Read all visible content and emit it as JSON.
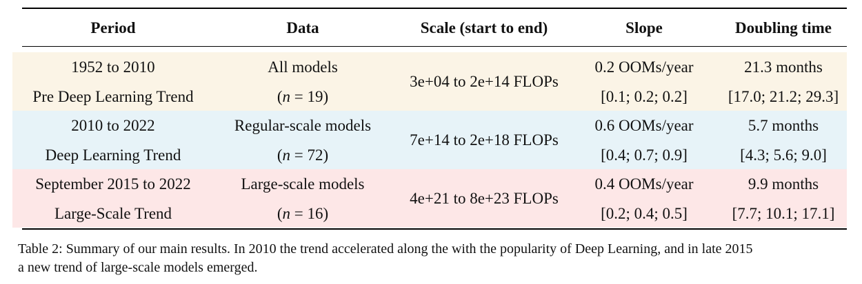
{
  "header": {
    "period": "Period",
    "data": "Data",
    "scale": "Scale (start to end)",
    "slope": "Slope",
    "doubling": "Doubling time"
  },
  "colors": {
    "row1": "#fbf4e6",
    "row2": "#e7f3f8",
    "row3": "#fde7e7"
  },
  "rows": [
    {
      "period_line1": "1952 to 2010",
      "period_line2": "Pre Deep Learning Trend",
      "data_line1": "All models",
      "n_value": "19",
      "scale": "3e+04 to 2e+14 FLOPs",
      "slope_line1": "0.2 OOMs/year",
      "slope_line2": "[0.1; 0.2; 0.2]",
      "doubling_line1": "21.3 months",
      "doubling_line2": "[17.0; 21.2; 29.3]"
    },
    {
      "period_line1": "2010 to 2022",
      "period_line2": "Deep Learning Trend",
      "data_line1": "Regular-scale models",
      "n_value": "72",
      "scale": "7e+14 to 2e+18 FLOPs",
      "slope_line1": "0.6 OOMs/year",
      "slope_line2": "[0.4; 0.7; 0.9]",
      "doubling_line1": "5.7 months",
      "doubling_line2": "[4.3; 5.6; 9.0]"
    },
    {
      "period_line1": "September 2015 to 2022",
      "period_line2": "Large-Scale Trend",
      "data_line1": "Large-scale models",
      "n_value": "16",
      "scale": "4e+21 to 8e+23 FLOPs",
      "slope_line1": "0.4 OOMs/year",
      "slope_line2": "[0.2; 0.4; 0.5]",
      "doubling_line1": "9.9 months",
      "doubling_line2": "[7.7; 10.1; 17.1]"
    }
  ],
  "caption_line1": "Table 2: Summary of our main results. In 2010 the trend accelerated along the with the popularity of Deep Learning, and in late 2015",
  "caption_line2": "a new trend of large-scale models emerged."
}
